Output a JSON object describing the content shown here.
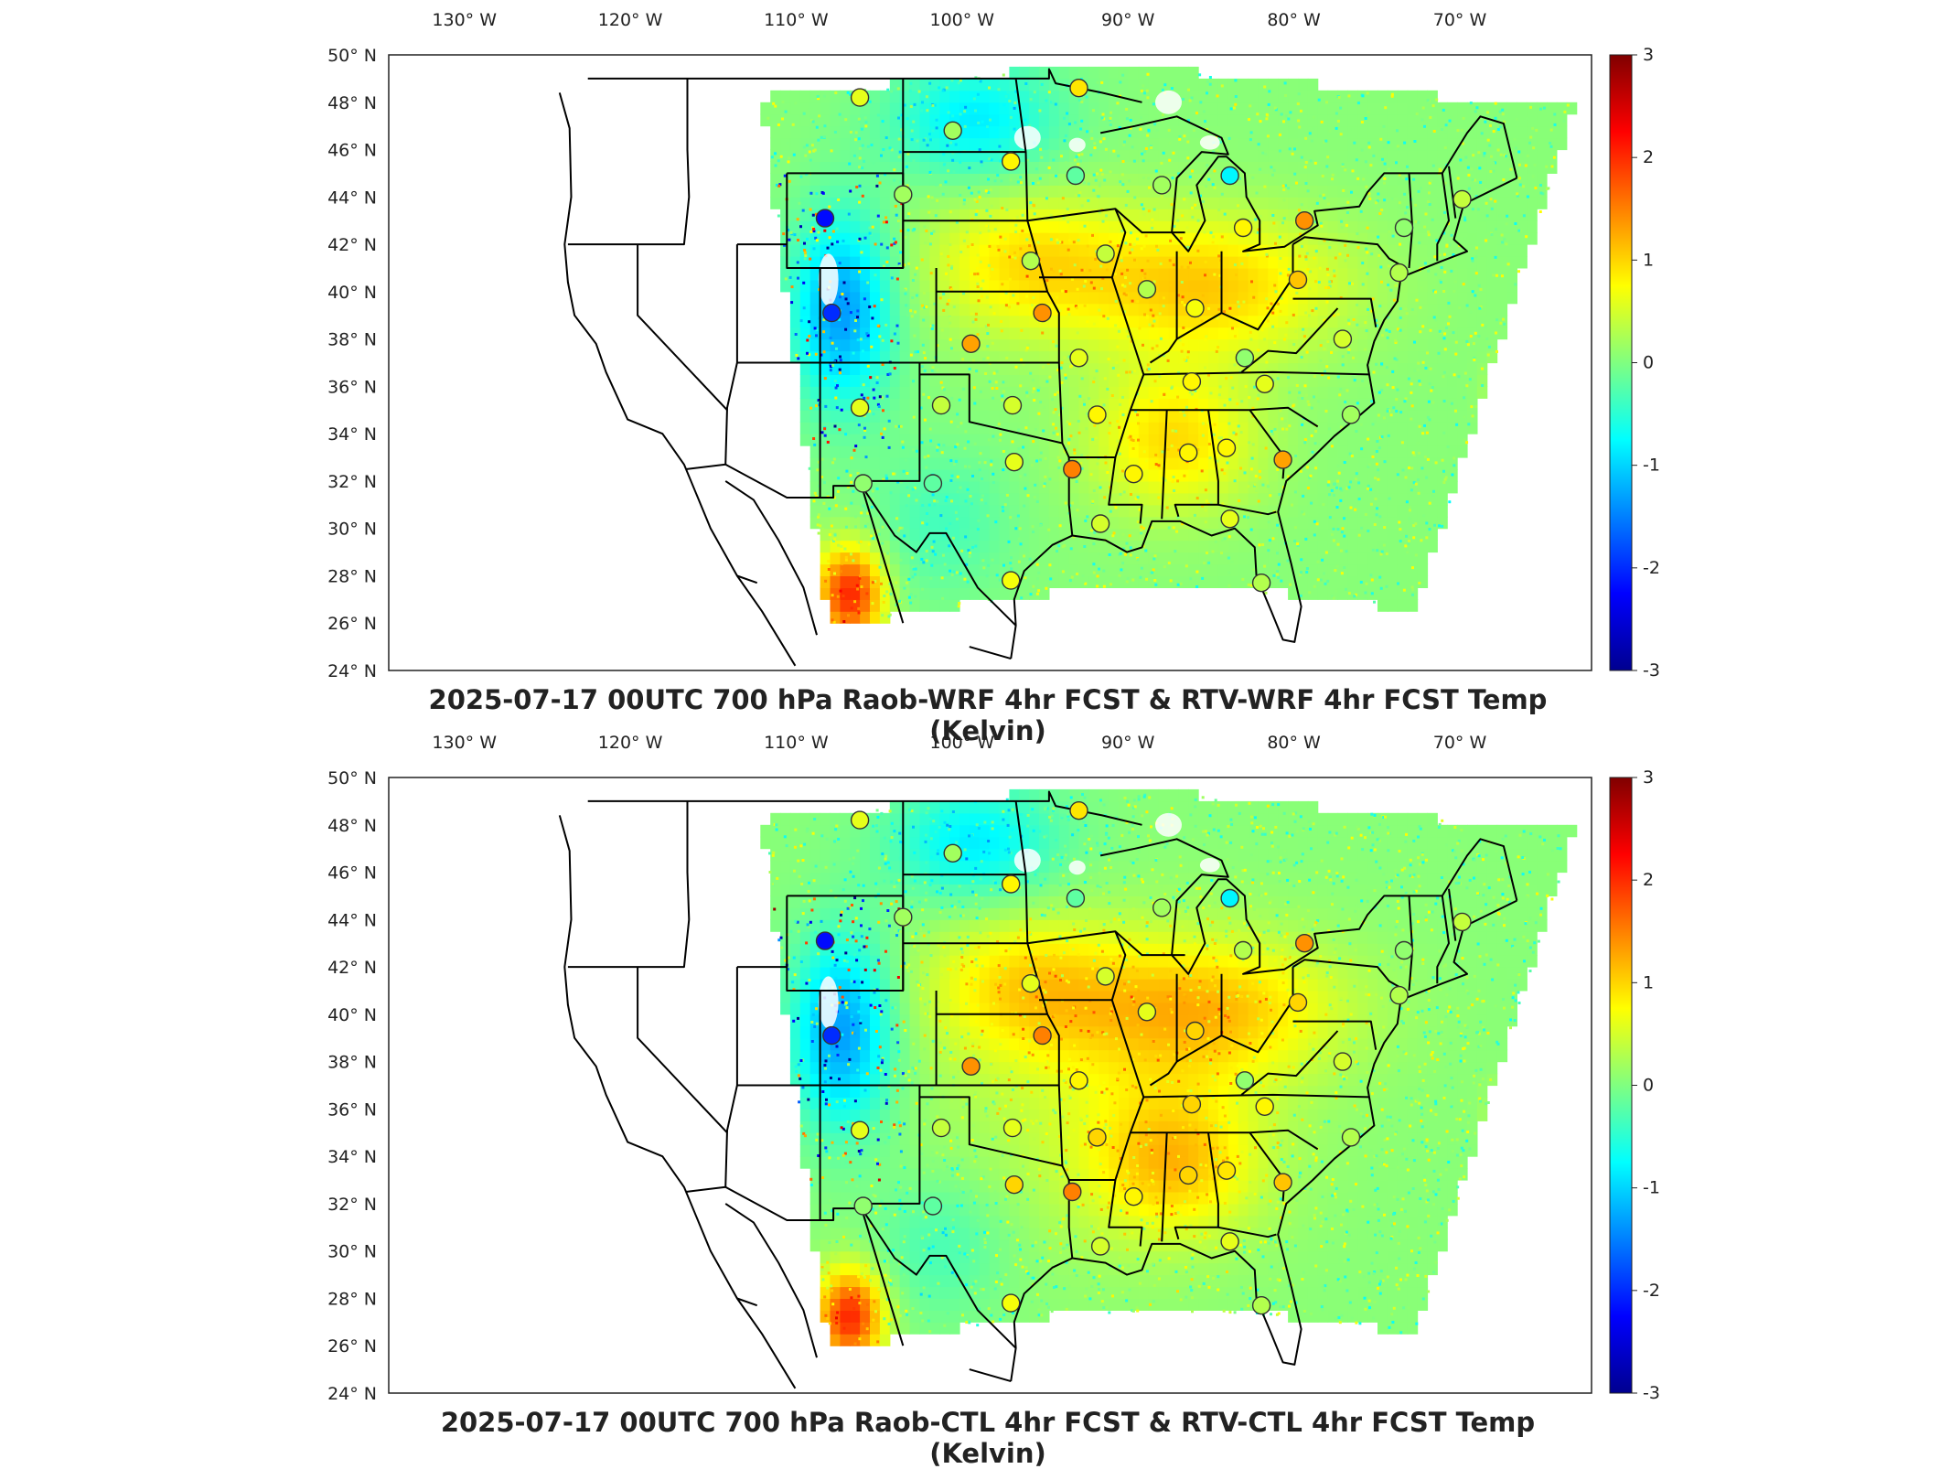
{
  "colors": {
    "colormap": [
      "#00008f",
      "#0000ff",
      "#0080ff",
      "#00ffff",
      "#80ff80",
      "#ffff00",
      "#ff8000",
      "#ff0000",
      "#800000"
    ],
    "border": "#000000",
    "field_base": "#9be89a",
    "ocean_east": "#a8f08f"
  },
  "panels": [
    {
      "id": "wrf",
      "title": "2025-07-17 00UTC 700 hPa Raob-WRF 4hr FCST & RTV-WRF 4hr FCST Temp (Kelvin)",
      "lon_labels": [
        "130° W",
        "120° W",
        "110° W",
        "100° W",
        "90° W",
        "80° W",
        "70° W"
      ],
      "lat_labels": [
        "50° N",
        "48° N",
        "46° N",
        "44° N",
        "42° N",
        "40° N",
        "38° N",
        "36° N",
        "34° N",
        "32° N",
        "30° N",
        "28° N",
        "26° N",
        "24° N"
      ],
      "colorbar_ticks": [
        "3",
        "2",
        "1",
        "0",
        "-1",
        "-2",
        "-3"
      ],
      "colorbar_limits": [
        -3,
        3
      ],
      "stations": [
        {
          "lon": -106.6,
          "lat": 48.2,
          "value": 0.6
        },
        {
          "lon": -93.4,
          "lat": 48.6,
          "value": 0.9
        },
        {
          "lon": -101.0,
          "lat": 46.8,
          "value": 0.2
        },
        {
          "lon": -97.5,
          "lat": 45.5,
          "value": 0.8
        },
        {
          "lon": -93.6,
          "lat": 44.9,
          "value": -0.2
        },
        {
          "lon": -104.0,
          "lat": 44.1,
          "value": 0.2
        },
        {
          "lon": -108.7,
          "lat": 43.1,
          "value": -2.2
        },
        {
          "lon": -108.3,
          "lat": 39.1,
          "value": -2.0
        },
        {
          "lon": -96.3,
          "lat": 41.3,
          "value": 0.3
        },
        {
          "lon": -91.8,
          "lat": 41.6,
          "value": 0.4
        },
        {
          "lon": -89.3,
          "lat": 40.1,
          "value": 0.3
        },
        {
          "lon": -86.4,
          "lat": 39.3,
          "value": 0.7
        },
        {
          "lon": -84.3,
          "lat": 44.9,
          "value": -0.8
        },
        {
          "lon": -88.4,
          "lat": 44.5,
          "value": 0.2
        },
        {
          "lon": -83.5,
          "lat": 42.7,
          "value": 0.8
        },
        {
          "lon": -79.8,
          "lat": 43.0,
          "value": 1.4
        },
        {
          "lon": -73.8,
          "lat": 42.7,
          "value": 0.1
        },
        {
          "lon": -70.3,
          "lat": 43.9,
          "value": 0.4
        },
        {
          "lon": -80.2,
          "lat": 40.5,
          "value": 1.1
        },
        {
          "lon": -77.5,
          "lat": 38.0,
          "value": 0.5
        },
        {
          "lon": -95.6,
          "lat": 39.1,
          "value": 1.4
        },
        {
          "lon": -99.9,
          "lat": 37.8,
          "value": 1.3
        },
        {
          "lon": -93.4,
          "lat": 37.2,
          "value": 0.6
        },
        {
          "lon": -86.6,
          "lat": 36.2,
          "value": 0.8
        },
        {
          "lon": -82.2,
          "lat": 36.1,
          "value": 0.6
        },
        {
          "lon": -83.4,
          "lat": 37.2,
          "value": 0.1
        },
        {
          "lon": -106.6,
          "lat": 35.1,
          "value": 0.6
        },
        {
          "lon": -101.7,
          "lat": 35.2,
          "value": 0.4
        },
        {
          "lon": -97.4,
          "lat": 35.2,
          "value": 0.5
        },
        {
          "lon": -92.3,
          "lat": 34.8,
          "value": 0.8
        },
        {
          "lon": -77.0,
          "lat": 34.8,
          "value": 0.2
        },
        {
          "lon": -106.4,
          "lat": 31.9,
          "value": 0.1
        },
        {
          "lon": -102.2,
          "lat": 31.9,
          "value": -0.2
        },
        {
          "lon": -97.3,
          "lat": 32.8,
          "value": 0.6
        },
        {
          "lon": -93.8,
          "lat": 32.5,
          "value": 1.5
        },
        {
          "lon": -90.1,
          "lat": 32.3,
          "value": 0.8
        },
        {
          "lon": -86.8,
          "lat": 33.2,
          "value": 0.8
        },
        {
          "lon": -84.5,
          "lat": 33.4,
          "value": 0.8
        },
        {
          "lon": -81.1,
          "lat": 32.9,
          "value": 1.3
        },
        {
          "lon": -92.1,
          "lat": 30.2,
          "value": 0.5
        },
        {
          "lon": -84.3,
          "lat": 30.4,
          "value": 0.6
        },
        {
          "lon": -97.5,
          "lat": 27.8,
          "value": 0.7
        },
        {
          "lon": -82.4,
          "lat": 27.7,
          "value": 0.3
        },
        {
          "lon": -74.1,
          "lat": 40.8,
          "value": 0.3
        }
      ]
    },
    {
      "id": "ctl",
      "title": "2025-07-17 00UTC 700 hPa Raob-CTL 4hr FCST & RTV-CTL 4hr FCST Temp (Kelvin)",
      "lon_labels": [
        "130° W",
        "120° W",
        "110° W",
        "100° W",
        "90° W",
        "80° W",
        "70° W"
      ],
      "lat_labels": [
        "50° N",
        "48° N",
        "46° N",
        "44° N",
        "42° N",
        "40° N",
        "38° N",
        "36° N",
        "34° N",
        "32° N",
        "30° N",
        "28° N",
        "26° N",
        "24° N"
      ],
      "colorbar_ticks": [
        "3",
        "2",
        "1",
        "0",
        "-1",
        "-2",
        "-3"
      ],
      "colorbar_limits": [
        -3,
        3
      ],
      "stations": [
        {
          "lon": -106.6,
          "lat": 48.2,
          "value": 0.6
        },
        {
          "lon": -93.4,
          "lat": 48.6,
          "value": 0.9
        },
        {
          "lon": -101.0,
          "lat": 46.8,
          "value": 0.2
        },
        {
          "lon": -97.5,
          "lat": 45.5,
          "value": 0.8
        },
        {
          "lon": -93.6,
          "lat": 44.9,
          "value": -0.2
        },
        {
          "lon": -104.0,
          "lat": 44.1,
          "value": 0.2
        },
        {
          "lon": -108.7,
          "lat": 43.1,
          "value": -2.2
        },
        {
          "lon": -108.3,
          "lat": 39.1,
          "value": -2.0
        },
        {
          "lon": -96.3,
          "lat": 41.3,
          "value": 0.6
        },
        {
          "lon": -91.8,
          "lat": 41.6,
          "value": 0.5
        },
        {
          "lon": -89.3,
          "lat": 40.1,
          "value": 0.6
        },
        {
          "lon": -86.4,
          "lat": 39.3,
          "value": 1.0
        },
        {
          "lon": -84.3,
          "lat": 44.9,
          "value": -0.8
        },
        {
          "lon": -88.4,
          "lat": 44.5,
          "value": 0.2
        },
        {
          "lon": -83.5,
          "lat": 42.7,
          "value": 0.3
        },
        {
          "lon": -79.8,
          "lat": 43.0,
          "value": 1.4
        },
        {
          "lon": -73.8,
          "lat": 42.7,
          "value": 0.1
        },
        {
          "lon": -70.3,
          "lat": 43.9,
          "value": 0.4
        },
        {
          "lon": -80.2,
          "lat": 40.5,
          "value": 1.0
        },
        {
          "lon": -77.5,
          "lat": 38.0,
          "value": 0.5
        },
        {
          "lon": -95.6,
          "lat": 39.1,
          "value": 1.5
        },
        {
          "lon": -99.9,
          "lat": 37.8,
          "value": 1.4
        },
        {
          "lon": -93.4,
          "lat": 37.2,
          "value": 0.8
        },
        {
          "lon": -86.6,
          "lat": 36.2,
          "value": 1.0
        },
        {
          "lon": -82.2,
          "lat": 36.1,
          "value": 0.8
        },
        {
          "lon": -83.4,
          "lat": 37.2,
          "value": 0.1
        },
        {
          "lon": -106.6,
          "lat": 35.1,
          "value": 0.6
        },
        {
          "lon": -101.7,
          "lat": 35.2,
          "value": 0.4
        },
        {
          "lon": -97.4,
          "lat": 35.2,
          "value": 0.6
        },
        {
          "lon": -92.3,
          "lat": 34.8,
          "value": 1.0
        },
        {
          "lon": -77.0,
          "lat": 34.8,
          "value": 0.3
        },
        {
          "lon": -106.4,
          "lat": 31.9,
          "value": 0.1
        },
        {
          "lon": -102.2,
          "lat": 31.9,
          "value": -0.2
        },
        {
          "lon": -97.3,
          "lat": 32.8,
          "value": 1.0
        },
        {
          "lon": -93.8,
          "lat": 32.5,
          "value": 1.5
        },
        {
          "lon": -90.1,
          "lat": 32.3,
          "value": 0.8
        },
        {
          "lon": -86.8,
          "lat": 33.2,
          "value": 1.0
        },
        {
          "lon": -84.5,
          "lat": 33.4,
          "value": 0.9
        },
        {
          "lon": -81.1,
          "lat": 32.9,
          "value": 1.1
        },
        {
          "lon": -92.1,
          "lat": 30.2,
          "value": 0.5
        },
        {
          "lon": -84.3,
          "lat": 30.4,
          "value": 0.6
        },
        {
          "lon": -97.5,
          "lat": 27.8,
          "value": 0.7
        },
        {
          "lon": -82.4,
          "lat": 27.7,
          "value": 0.3
        },
        {
          "lon": -74.1,
          "lat": 40.8,
          "value": 0.3
        }
      ]
    }
  ]
}
